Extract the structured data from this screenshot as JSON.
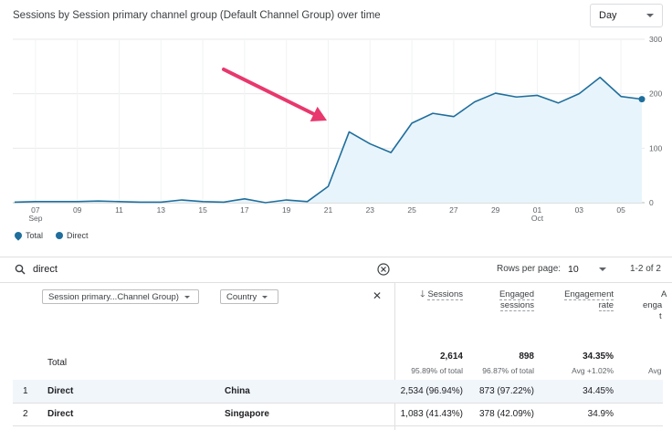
{
  "header": {
    "title": "Sessions by Session primary channel group (Default Channel Group) over time",
    "granularity": "Day"
  },
  "chart_data": {
    "type": "line",
    "ylim": [
      0,
      300
    ],
    "yticks": [
      "300",
      "200",
      "100",
      "0"
    ],
    "xticks": [
      {
        "label": "07",
        "sub": "Sep",
        "i": 1
      },
      {
        "label": "09",
        "sub": "",
        "i": 3
      },
      {
        "label": "11",
        "sub": "",
        "i": 5
      },
      {
        "label": "13",
        "sub": "",
        "i": 7
      },
      {
        "label": "15",
        "sub": "",
        "i": 9
      },
      {
        "label": "17",
        "sub": "",
        "i": 11
      },
      {
        "label": "19",
        "sub": "",
        "i": 13
      },
      {
        "label": "21",
        "sub": "",
        "i": 15
      },
      {
        "label": "23",
        "sub": "",
        "i": 17
      },
      {
        "label": "25",
        "sub": "",
        "i": 19
      },
      {
        "label": "27",
        "sub": "",
        "i": 21
      },
      {
        "label": "29",
        "sub": "",
        "i": 23
      },
      {
        "label": "01",
        "sub": "Oct",
        "i": 25
      },
      {
        "label": "03",
        "sub": "",
        "i": 27
      },
      {
        "label": "05",
        "sub": "",
        "i": 29
      }
    ],
    "series": [
      {
        "name": "Direct",
        "values": [
          1,
          2,
          2,
          2,
          3,
          2,
          1,
          1,
          5,
          2,
          1,
          7,
          0,
          5,
          2,
          30,
          130,
          108,
          92,
          146,
          164,
          158,
          185,
          201,
          194,
          197,
          183,
          200,
          230,
          195,
          190
        ]
      }
    ],
    "grid": true,
    "legend": [
      "Total",
      "Direct"
    ],
    "colors": {
      "line": "#1f6e9c",
      "fill": "#e8f4fc",
      "annotation": "#e8386d"
    }
  },
  "search": {
    "value": "direct"
  },
  "pagination": {
    "rows_label": "Rows per page:",
    "rows_value": "10",
    "range": "1-2 of 2"
  },
  "dimensions": {
    "primary": "Session primary...Channel Group)",
    "secondary": "Country"
  },
  "columns": {
    "sessions": "Sessions",
    "engaged_l1": "Engaged",
    "engaged_l2": "sessions",
    "rate_l1": "Engagement",
    "rate_l2": "rate",
    "cut_l1": "A",
    "cut_l2": "enga",
    "cut_l3": "t"
  },
  "totals": {
    "label": "Total",
    "sessions": "2,614",
    "sessions_sub": "95.89% of total",
    "engaged": "898",
    "engaged_sub": "96.87% of total",
    "rate": "34.35%",
    "rate_sub": "Avg +1.02%",
    "cut_sub": "Avg"
  },
  "rows": [
    {
      "index": "1",
      "channel": "Direct",
      "country": "China",
      "sessions": "2,534 (96.94%)",
      "engaged": "873 (97.22%)",
      "rate": "34.45%"
    },
    {
      "index": "2",
      "channel": "Direct",
      "country": "Singapore",
      "sessions": "1,083 (41.43%)",
      "engaged": "378 (42.09%)",
      "rate": "34.9%"
    }
  ]
}
